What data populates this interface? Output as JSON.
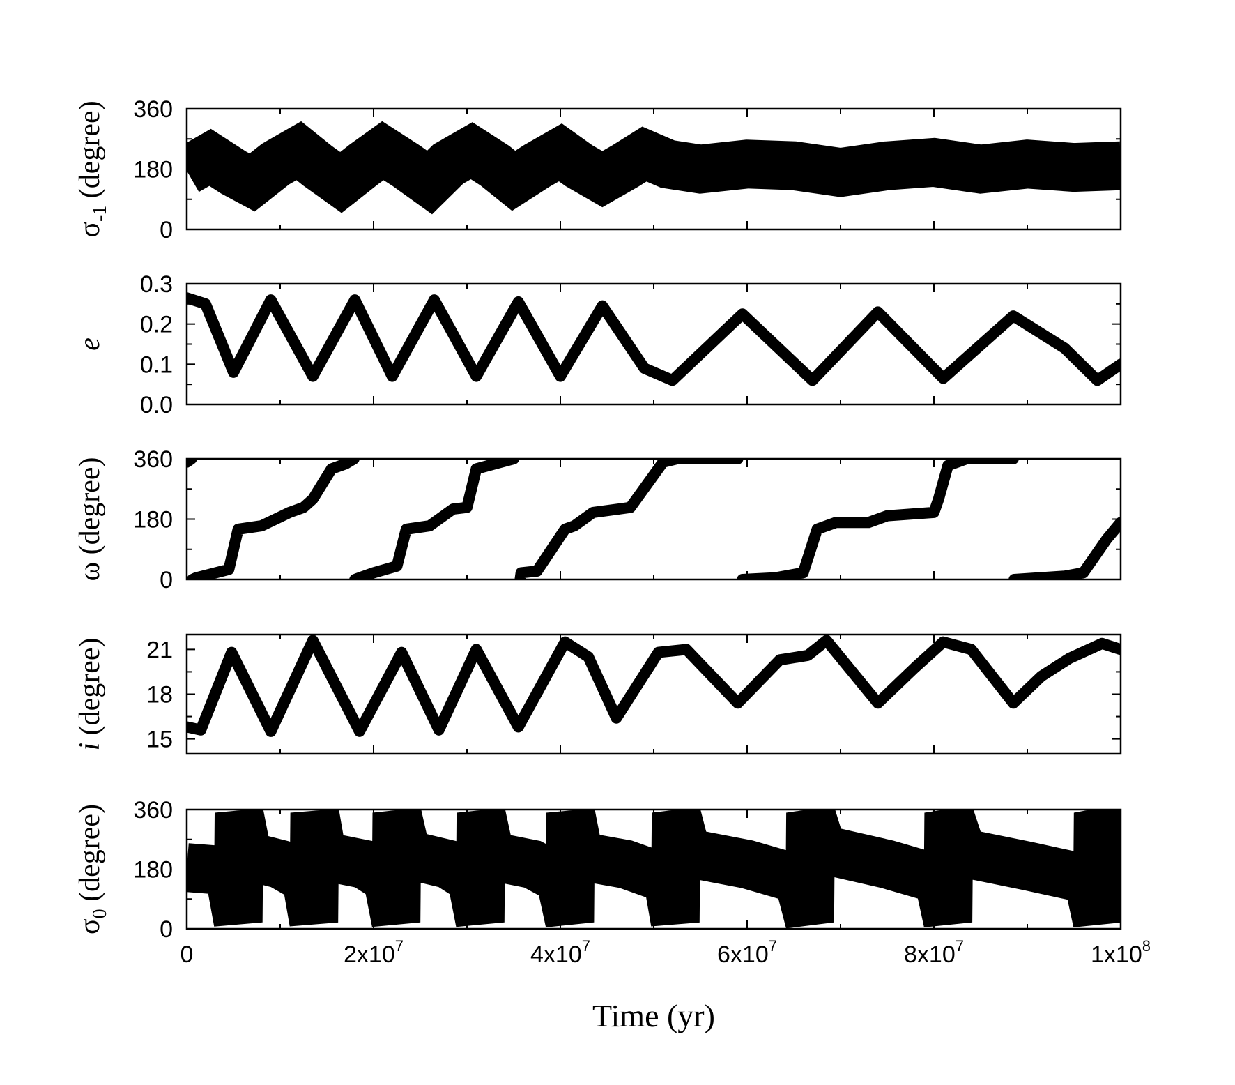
{
  "chart_data": [
    {
      "type": "line",
      "id": "sigma_m1",
      "ylabel": {
        "symbol": "σ",
        "subscript": "-1",
        "unit": " (degree)"
      },
      "ylim": [
        0,
        360
      ],
      "yticks": [
        0,
        180,
        360
      ],
      "yticklabels": [
        "0",
        "180",
        "360"
      ],
      "style": "band",
      "series": [
        {
          "name": "σ-1",
          "x": [
            0,
            2500000.0,
            5000000.0,
            7000000.0,
            9500000.0,
            12000000.0,
            14000000.0,
            16500000.0,
            19000000.0,
            21000000.0,
            23500000.0,
            26000000.0,
            28000000.0,
            30500000.0,
            33000000.0,
            35000000.0,
            37500000.0,
            40000000.0,
            42000000.0,
            44500000.0,
            47000000.0,
            49000000.0,
            51500000.0,
            55000000.0,
            60000000.0,
            65000000.0,
            70000000.0,
            75000000.0,
            80000000.0,
            85000000.0,
            90000000.0,
            95000000.0,
            100000000.0
          ],
          "y": [
            175,
            215,
            170,
            140,
            195,
            235,
            190,
            140,
            195,
            235,
            190,
            140,
            195,
            235,
            190,
            145,
            190,
            230,
            190,
            150,
            190,
            225,
            195,
            180,
            195,
            190,
            170,
            190,
            200,
            180,
            195,
            185,
            190
          ]
        }
      ]
    },
    {
      "type": "line",
      "id": "e",
      "ylabel": {
        "symbol": "e",
        "subscript": "",
        "unit": ""
      },
      "ylim": [
        0,
        0.3
      ],
      "yticks": [
        0,
        0.1,
        0.2,
        0.3
      ],
      "yticklabels": [
        "0.0",
        "0.1",
        "0.2",
        "0.3"
      ],
      "style": "thick",
      "series": [
        {
          "name": "e",
          "x": [
            0,
            2000000.0,
            5000000.0,
            9000000.0,
            13500000.0,
            18000000.0,
            22000000.0,
            26500000.0,
            31000000.0,
            35500000.0,
            40000000.0,
            44500000.0,
            49000000.0,
            52000000.0,
            59500000.0,
            67000000.0,
            74000000.0,
            81000000.0,
            88500000.0,
            94000000.0,
            97500000.0,
            100000000.0
          ],
          "y": [
            0.265,
            0.25,
            0.08,
            0.26,
            0.07,
            0.26,
            0.07,
            0.26,
            0.07,
            0.255,
            0.07,
            0.245,
            0.09,
            0.06,
            0.225,
            0.06,
            0.23,
            0.065,
            0.22,
            0.14,
            0.06,
            0.1
          ]
        }
      ]
    },
    {
      "type": "line",
      "id": "omega",
      "ylabel": {
        "symbol": "ω",
        "subscript": "",
        "unit": " (degree)"
      },
      "ylim": [
        0,
        360
      ],
      "yticks": [
        0,
        180,
        360
      ],
      "yticklabels": [
        "0",
        "180",
        "360"
      ],
      "style": "thick",
      "wrap": true,
      "series": [
        {
          "name": "ω",
          "x": [
            0,
            500000.0,
            600000.0,
            1000000.0,
            4500000.0,
            5500000.0,
            8000000.0,
            11000000.0,
            12500000.0,
            13500000.0,
            15500000.0,
            17000000.0,
            17900000.0,
            18000000.0,
            20000000.0,
            22500000.0,
            23500000.0,
            26000000.0,
            28500000.0,
            30000000.0,
            31000000.0,
            33000000.0,
            35000000.0,
            35700000.0,
            35800000.0,
            37500000.0,
            40500000.0,
            41500000.0,
            43500000.0,
            47500000.0,
            51000000.0,
            52500000.0,
            54000000.0,
            59000000.0,
            59500000.0,
            63000000.0,
            66000000.0,
            67500000.0,
            69500000.0,
            73000000.0,
            75000000.0,
            80000000.0,
            80500000.0,
            81500000.0,
            83500000.0,
            88500000.0,
            88600000.0,
            94000000.0,
            96000000.0,
            98500000.0,
            100000000.0
          ],
          "y": [
            350,
            360,
            0,
            5,
            30,
            150,
            160,
            200,
            215,
            240,
            330,
            345,
            360,
            0,
            20,
            40,
            150,
            160,
            210,
            215,
            330,
            345,
            360,
            0,
            20,
            25,
            150,
            160,
            200,
            215,
            350,
            360,
            360,
            360,
            0,
            5,
            20,
            150,
            170,
            170,
            190,
            200,
            240,
            340,
            360,
            360,
            0,
            10,
            20,
            120,
            170
          ]
        }
      ]
    },
    {
      "type": "line",
      "id": "i",
      "ylabel": {
        "symbol": "i",
        "subscript": "",
        "unit": " (degree)"
      },
      "ylim": [
        14,
        22
      ],
      "yticks": [
        15,
        18,
        21
      ],
      "yticklabels": [
        "15",
        "18",
        "21"
      ],
      "style": "thick",
      "series": [
        {
          "name": "i",
          "x": [
            0,
            1500000.0,
            4800000.0,
            9000000.0,
            13500000.0,
            18500000.0,
            23000000.0,
            27000000.0,
            31000000.0,
            35500000.0,
            40500000.0,
            43000000.0,
            46000000.0,
            50500000.0,
            53500000.0,
            59000000.0,
            63500000.0,
            66500000.0,
            68500000.0,
            74000000.0,
            78000000.0,
            81000000.0,
            84000000.0,
            88500000.0,
            91500000.0,
            94500000.0,
            98000000.0,
            100000000.0
          ],
          "y": [
            15.8,
            15.6,
            20.8,
            15.5,
            21.6,
            15.5,
            20.8,
            15.6,
            21.0,
            15.8,
            21.5,
            20.5,
            16.4,
            20.8,
            21.0,
            17.4,
            20.3,
            20.6,
            21.6,
            17.4,
            19.8,
            21.5,
            21.0,
            17.4,
            19.2,
            20.4,
            21.4,
            21.0
          ]
        }
      ]
    },
    {
      "type": "line",
      "id": "sigma_0",
      "ylabel": {
        "symbol": "σ",
        "subscript": "0",
        "unit": " (degree)"
      },
      "ylim": [
        0,
        360
      ],
      "yticks": [
        0,
        180,
        360
      ],
      "yticklabels": [
        "0",
        "180",
        "360"
      ],
      "style": "band",
      "xticks": [
        0,
        20000000.0,
        40000000.0,
        60000000.0,
        80000000.0,
        100000000.0
      ],
      "xticklabels": [
        {
          "base": "0",
          "exp": ""
        },
        {
          "base": "2x10",
          "exp": "7"
        },
        {
          "base": "4x10",
          "exp": "7"
        },
        {
          "base": "6x10",
          "exp": "7"
        },
        {
          "base": "8x10",
          "exp": "7"
        },
        {
          "base": "1x10",
          "exp": "8"
        }
      ],
      "series": [
        {
          "name": "σ0",
          "x": [
            0,
            4500000.0,
            5500000.0,
            5600000.0,
            6500000.0,
            10000000.0,
            12800000.0,
            13600000.0,
            13700000.0,
            14500000.0,
            19000000.0,
            21500000.0,
            22400000.0,
            22500000.0,
            23500000.0,
            28000000.0,
            30500000.0,
            31400000.0,
            31500000.0,
            32500000.0,
            37000000.0,
            40000000.0,
            41000000.0,
            41100000.0,
            42000000.0,
            47000000.0,
            51500000.0,
            52300000.0,
            52400000.0,
            53500000.0,
            60000000.0,
            65500000.0,
            66700000.0,
            66800000.0,
            68000000.0,
            75000000.0,
            80500000.0,
            81500000.0,
            81600000.0,
            83000000.0,
            90000000.0,
            96500000.0,
            97500000.0,
            97600000.0,
            99000000.0,
            100000000.0
          ],
          "y": [
            185,
            175,
            20,
            350,
            220,
            195,
            150,
            20,
            350,
            220,
            195,
            150,
            20,
            350,
            225,
            195,
            150,
            20,
            350,
            220,
            195,
            150,
            20,
            350,
            220,
            195,
            150,
            20,
            350,
            230,
            195,
            150,
            20,
            350,
            240,
            195,
            150,
            20,
            350,
            230,
            190,
            150,
            20,
            350,
            250,
            240
          ]
        }
      ]
    }
  ],
  "xlabel": "Time (yr)",
  "xlim": [
    0,
    100000000
  ]
}
